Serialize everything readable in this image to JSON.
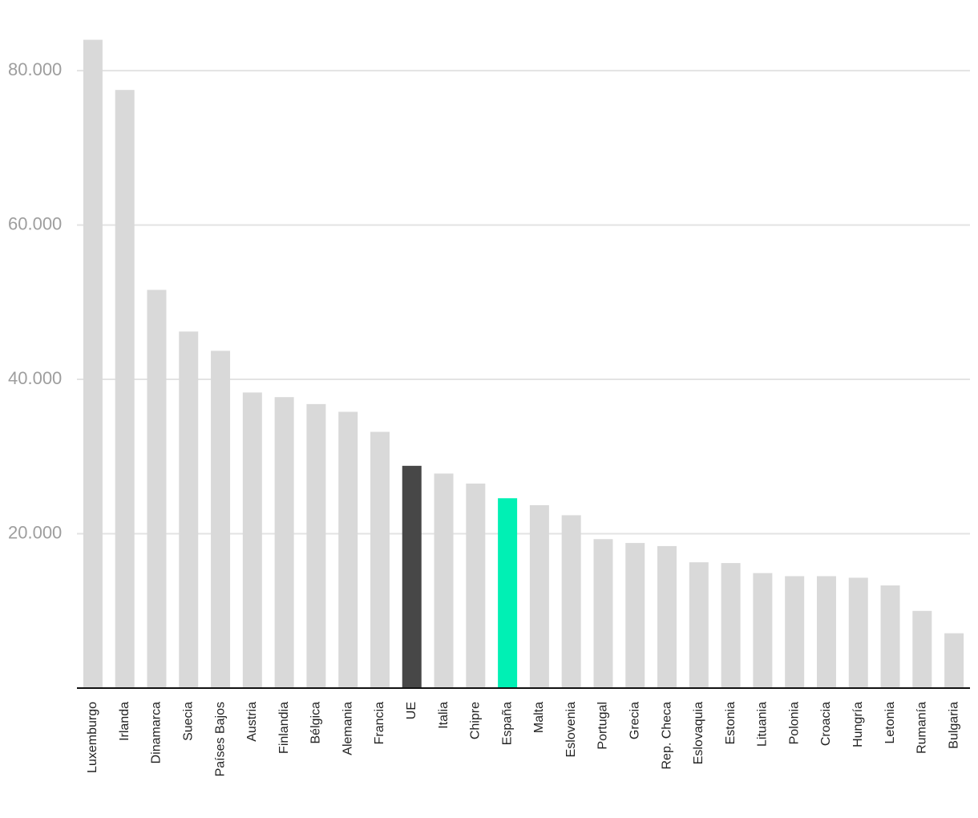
{
  "chart_data": {
    "type": "bar",
    "categories": [
      "Luxemburgo",
      "Irlanda",
      "Dinamarca",
      "Suecia",
      "Países Bajos",
      "Austria",
      "Finlandia",
      "Bélgica",
      "Alemania",
      "Francia",
      "UE",
      "Italia",
      "Chipre",
      "España",
      "Malta",
      "Eslovenia",
      "Portugal",
      "Grecia",
      "Rep. Checa",
      "Eslovaquia",
      "Estonia",
      "Lituania",
      "Polonia",
      "Croacia",
      "Hungría",
      "Letonia",
      "Rumanía",
      "Bulgaria"
    ],
    "values": [
      84000,
      77500,
      51600,
      46200,
      43700,
      38300,
      37700,
      36800,
      35800,
      33200,
      28800,
      27800,
      26500,
      24600,
      23700,
      22400,
      19300,
      18800,
      18400,
      16300,
      16200,
      14900,
      14500,
      14500,
      14300,
      13300,
      10000,
      7100
    ],
    "colors": [
      "#d9d9d9",
      "#d9d9d9",
      "#d9d9d9",
      "#d9d9d9",
      "#d9d9d9",
      "#d9d9d9",
      "#d9d9d9",
      "#d9d9d9",
      "#d9d9d9",
      "#d9d9d9",
      "#474747",
      "#d9d9d9",
      "#d9d9d9",
      "#00f0b4",
      "#d9d9d9",
      "#d9d9d9",
      "#d9d9d9",
      "#d9d9d9",
      "#d9d9d9",
      "#d9d9d9",
      "#d9d9d9",
      "#d9d9d9",
      "#d9d9d9",
      "#d9d9d9",
      "#d9d9d9",
      "#d9d9d9",
      "#d9d9d9",
      "#d9d9d9"
    ],
    "ylim": [
      0,
      85000
    ],
    "yticks": [
      {
        "value": 20000,
        "label": "20.000"
      },
      {
        "value": 40000,
        "label": "40.000"
      },
      {
        "value": 60000,
        "label": "60.000"
      },
      {
        "value": 80000,
        "label": "80.000"
      }
    ],
    "grid": true
  }
}
